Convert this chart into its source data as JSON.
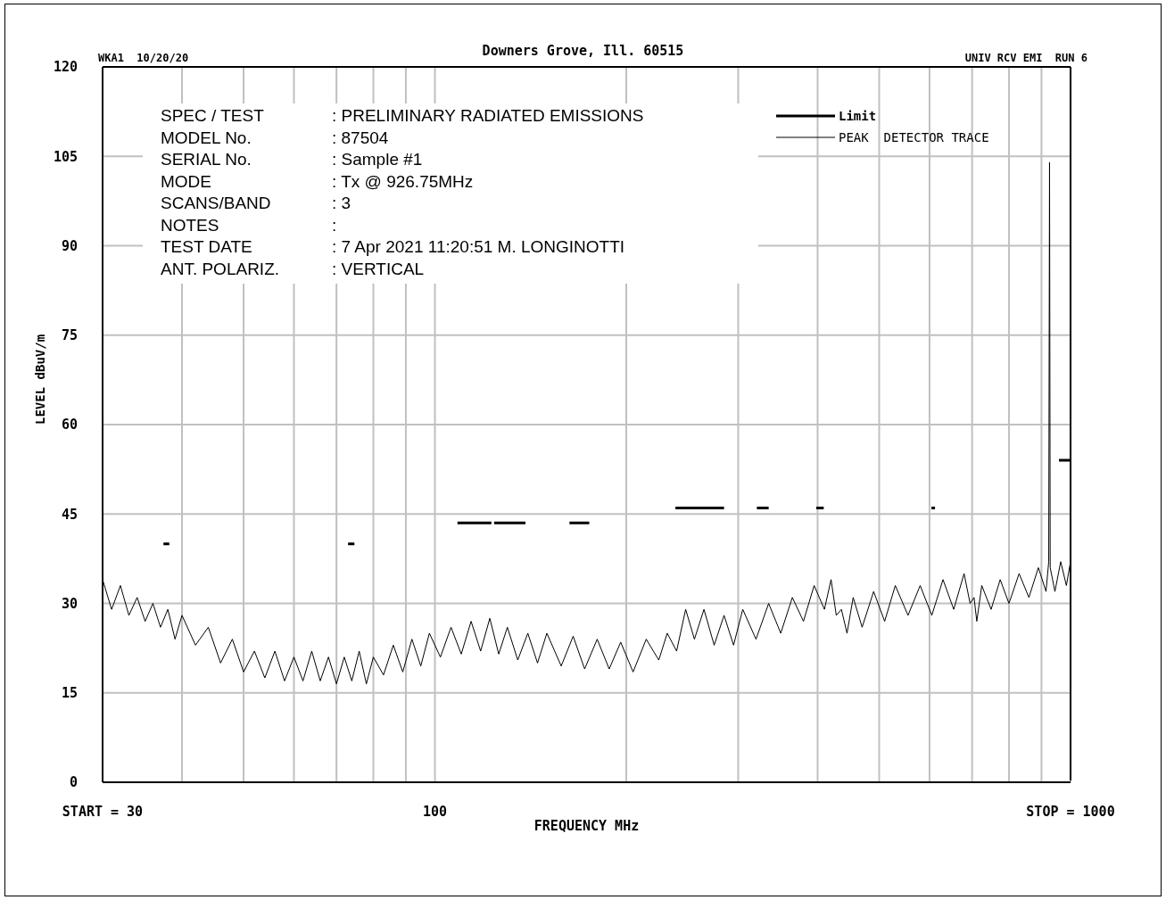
{
  "chart_data": {
    "type": "line",
    "subtitle": "Downers Grove, Ill. 60515",
    "xlabel": "FREQUENCY  MHz",
    "ylabel": "LEVEL  dBuV/m",
    "annotations": [
      "WKA1  10/20/20",
      "UNIV RCV EMI  RUN 6",
      "SPEC / TEST : PRELIMINARY RADIATED EMISSIONS",
      "MODEL No. : 87504",
      "SERIAL No. : Sample #1",
      "MODE : Tx @ 926.75MHz",
      "SCANS/BAND : 3",
      "NOTES : ",
      "TEST DATE : 7 Apr 2021 11:20:51 M. LONGINOTTI",
      "ANT. POLARIZ. : VERTICAL"
    ],
    "log": "x",
    "grid": true,
    "legend": "top right",
    "xlim": [
      30,
      1000
    ],
    "xticks": [
      {
        "value": 30,
        "label": "START = 30"
      },
      {
        "value": 40,
        "label": null
      },
      {
        "value": 50,
        "label": null
      },
      {
        "value": 60,
        "label": null
      },
      {
        "value": 70,
        "label": null
      },
      {
        "value": 80,
        "label": null
      },
      {
        "value": 90,
        "label": null
      },
      100,
      {
        "value": 200,
        "label": null
      },
      {
        "value": 300,
        "label": null
      },
      {
        "value": 400,
        "label": null
      },
      {
        "value": 500,
        "label": null
      },
      {
        "value": 600,
        "label": null
      },
      {
        "value": 700,
        "label": null
      },
      {
        "value": 800,
        "label": null
      },
      {
        "value": 900,
        "label": null
      },
      {
        "value": 1000,
        "label": "STOP = 1000"
      }
    ],
    "ylim": [
      0,
      120
    ],
    "yticks": [
      0,
      15,
      30,
      45,
      60,
      75,
      90,
      105,
      120
    ],
    "series": [
      {
        "name": "Limit",
        "color": "#000000",
        "x": [
          37.4,
          38.2,
          55,
          73,
          74.7,
          90,
          108.5,
          122.7,
          123.2,
          123.9,
          138.8,
          150,
          162.8,
          174.9,
          200,
          239,
          285,
          300,
          321,
          335,
          360,
          398,
          409,
          500,
          604,
          612,
          800,
          959,
          1000
        ],
        "values": [
          40,
          40,
          null,
          40,
          40,
          null,
          43.5,
          43.5,
          null,
          43.5,
          43.5,
          null,
          43.5,
          43.5,
          null,
          46,
          46,
          null,
          46,
          46,
          null,
          46,
          46,
          null,
          46,
          46,
          null,
          54,
          54
        ]
      },
      {
        "name": "PEAK  DETECTOR TRACE",
        "color": "#000000",
        "x": [
          30,
          31,
          32,
          33,
          34,
          35,
          36,
          37,
          38,
          39,
          40,
          42,
          44,
          46,
          48,
          50,
          52,
          54,
          56,
          58,
          60,
          62,
          64,
          66,
          68,
          70,
          72,
          74,
          76,
          78,
          80,
          83,
          86,
          89,
          92,
          95,
          98,
          102,
          106,
          110,
          114,
          118,
          122,
          126,
          130,
          135,
          140,
          145,
          150,
          158,
          165,
          172,
          180,
          188,
          196,
          205,
          215,
          225,
          232,
          240,
          248,
          256,
          265,
          275,
          285,
          295,
          305,
          320,
          335,
          350,
          365,
          380,
          395,
          410,
          420,
          428,
          436,
          445,
          455,
          470,
          490,
          510,
          530,
          555,
          580,
          605,
          630,
          655,
          680,
          695,
          705,
          712,
          725,
          750,
          775,
          800,
          830,
          860,
          890,
          915,
          924,
          926.75,
          929,
          945,
          965,
          985,
          1000
        ],
        "values": [
          34,
          29,
          33,
          28,
          31,
          27,
          30,
          26,
          29,
          24,
          28,
          23,
          26,
          20,
          24,
          18.5,
          22,
          17.5,
          22,
          17,
          21,
          17,
          22,
          17,
          21,
          16.5,
          21,
          17,
          22,
          16.5,
          21,
          18,
          23,
          18.5,
          24,
          19.5,
          25,
          21,
          26,
          21.5,
          27,
          22,
          27.5,
          21.5,
          26,
          20.5,
          25,
          20,
          25,
          19.5,
          24.5,
          19,
          24,
          19,
          23.5,
          18.5,
          24,
          20.5,
          25,
          22,
          29,
          24,
          29,
          23,
          28,
          23,
          29,
          24,
          30,
          25,
          31,
          27,
          33,
          29,
          34,
          28,
          29,
          25,
          31,
          26,
          32,
          27,
          33,
          28,
          33,
          28,
          34,
          29,
          35,
          30,
          31,
          27,
          33,
          29,
          34,
          30,
          35,
          31,
          36,
          32,
          37,
          104,
          36,
          32,
          37,
          33,
          37
        ]
      }
    ]
  }
}
